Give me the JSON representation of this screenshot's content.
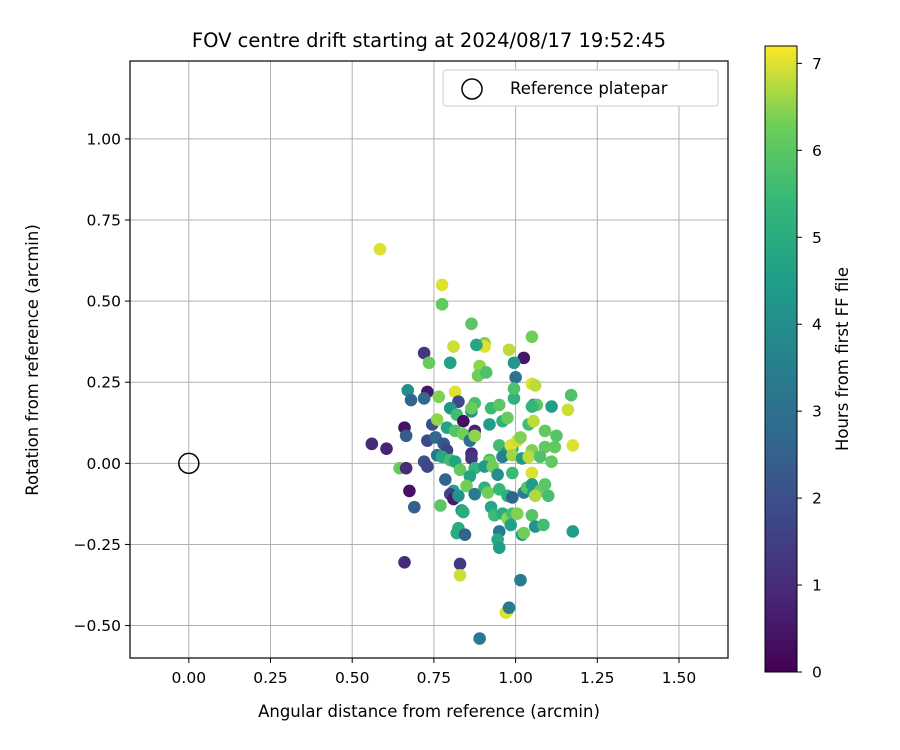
{
  "chart_data": {
    "type": "scatter",
    "title": "FOV centre drift starting at 2024/08/17 19:52:45",
    "xlabel": "Angular distance from reference (arcmin)",
    "ylabel": "Rotation from reference (arcmin)",
    "xlim": [
      -0.18,
      1.65
    ],
    "ylim": [
      -0.6,
      1.24
    ],
    "xticks": [
      "0.00",
      "0.25",
      "0.50",
      "0.75",
      "1.00",
      "1.25",
      "1.50"
    ],
    "xtick_values": [
      0,
      0.25,
      0.5,
      0.75,
      1.0,
      1.25,
      1.5
    ],
    "yticks": [
      "−0.50",
      "−0.25",
      "0.00",
      "0.25",
      "0.50",
      "0.75",
      "1.00"
    ],
    "ytick_values": [
      -0.5,
      -0.25,
      0,
      0.25,
      0.5,
      0.75,
      1.0
    ],
    "grid": true,
    "legend": {
      "placement": "top-right",
      "entries": [
        "Reference platepar"
      ]
    },
    "reference_point": {
      "name": "Reference platepar",
      "x": 0.0,
      "y": 0.0
    },
    "colorbar": {
      "label": "Hours from first FF file",
      "range": [
        0,
        7.2
      ],
      "ticks": [
        "0",
        "1",
        "2",
        "3",
        "4",
        "5",
        "6",
        "7"
      ],
      "tick_values": [
        0,
        1,
        2,
        3,
        4,
        5,
        6,
        7
      ],
      "colormap": "viridis"
    },
    "points": [
      [
        0.585,
        0.66,
        7.0
      ],
      [
        0.775,
        0.55,
        7.0
      ],
      [
        0.775,
        0.49,
        6.1
      ],
      [
        0.865,
        0.43,
        6.0
      ],
      [
        0.905,
        0.37,
        6.4
      ],
      [
        0.905,
        0.36,
        7.0
      ],
      [
        0.98,
        0.35,
        6.8
      ],
      [
        1.05,
        0.39,
        6.3
      ],
      [
        0.88,
        0.365,
        4.8
      ],
      [
        0.81,
        0.36,
        6.9
      ],
      [
        1.025,
        0.325,
        0.5
      ],
      [
        0.72,
        0.34,
        1.3
      ],
      [
        0.735,
        0.31,
        6.2
      ],
      [
        0.8,
        0.31,
        4.6
      ],
      [
        0.89,
        0.3,
        6.5
      ],
      [
        0.885,
        0.27,
        6.3
      ],
      [
        0.91,
        0.28,
        5.8
      ],
      [
        0.995,
        0.31,
        4.3
      ],
      [
        1.0,
        0.265,
        3.0
      ],
      [
        1.05,
        0.245,
        7.0
      ],
      [
        1.06,
        0.24,
        6.8
      ],
      [
        0.73,
        0.22,
        0.5
      ],
      [
        0.67,
        0.225,
        4.0
      ],
      [
        0.68,
        0.195,
        2.6
      ],
      [
        0.72,
        0.2,
        2.8
      ],
      [
        0.765,
        0.205,
        6.4
      ],
      [
        0.815,
        0.22,
        7.0
      ],
      [
        0.825,
        0.19,
        1.8
      ],
      [
        0.8,
        0.17,
        4.3
      ],
      [
        0.82,
        0.15,
        5.6
      ],
      [
        0.84,
        0.13,
        0.3
      ],
      [
        0.865,
        0.16,
        4.2
      ],
      [
        0.875,
        0.185,
        5.7
      ],
      [
        0.865,
        0.17,
        6.2
      ],
      [
        0.925,
        0.17,
        5.5
      ],
      [
        0.95,
        0.18,
        6.0
      ],
      [
        0.995,
        0.2,
        5.2
      ],
      [
        0.995,
        0.23,
        5.8
      ],
      [
        1.055,
        0.18,
        3.6
      ],
      [
        1.065,
        0.18,
        6.0
      ],
      [
        1.05,
        0.175,
        5.3
      ],
      [
        1.11,
        0.175,
        4.5
      ],
      [
        1.16,
        0.165,
        6.9
      ],
      [
        1.17,
        0.21,
        5.8
      ],
      [
        0.745,
        0.12,
        2.0
      ],
      [
        0.76,
        0.135,
        6.5
      ],
      [
        0.79,
        0.11,
        4.7
      ],
      [
        0.815,
        0.1,
        5.9
      ],
      [
        0.84,
        0.09,
        6.3
      ],
      [
        0.875,
        0.1,
        0.8
      ],
      [
        0.92,
        0.12,
        4.5
      ],
      [
        0.96,
        0.13,
        5.2
      ],
      [
        0.975,
        0.14,
        6.2
      ],
      [
        1.04,
        0.12,
        5.6
      ],
      [
        1.055,
        0.13,
        6.8
      ],
      [
        1.09,
        0.1,
        6.1
      ],
      [
        1.125,
        0.085,
        5.9
      ],
      [
        0.66,
        0.11,
        0.4
      ],
      [
        0.665,
        0.085,
        2.4
      ],
      [
        0.73,
        0.07,
        1.8
      ],
      [
        0.755,
        0.08,
        2.7
      ],
      [
        0.78,
        0.06,
        2.2
      ],
      [
        0.79,
        0.04,
        1.6
      ],
      [
        0.86,
        0.07,
        3.0
      ],
      [
        0.875,
        0.085,
        6.5
      ],
      [
        0.95,
        0.055,
        5.6
      ],
      [
        0.975,
        0.035,
        4.2
      ],
      [
        0.99,
        0.045,
        5.0
      ],
      [
        0.985,
        0.055,
        7.0
      ],
      [
        1.005,
        0.07,
        6.9
      ],
      [
        1.015,
        0.08,
        6.4
      ],
      [
        1.05,
        0.04,
        6.4
      ],
      [
        1.09,
        0.05,
        6.1
      ],
      [
        1.12,
        0.05,
        6.1
      ],
      [
        1.175,
        0.055,
        7.0
      ],
      [
        0.56,
        0.06,
        1.0
      ],
      [
        0.605,
        0.045,
        0.8
      ],
      [
        0.76,
        0.025,
        3.2
      ],
      [
        0.775,
        0.02,
        4.9
      ],
      [
        0.8,
        0.01,
        5.6
      ],
      [
        0.815,
        0.005,
        4.7
      ],
      [
        0.865,
        0.03,
        1.0
      ],
      [
        0.865,
        0.015,
        1.3
      ],
      [
        0.92,
        0.01,
        5.4
      ],
      [
        0.92,
        0.005,
        6.3
      ],
      [
        0.96,
        0.02,
        3.5
      ],
      [
        0.99,
        0.025,
        6.6
      ],
      [
        1.02,
        0.015,
        4.4
      ],
      [
        1.04,
        0.02,
        6.8
      ],
      [
        1.075,
        0.02,
        5.8
      ],
      [
        1.11,
        0.005,
        6.1
      ],
      [
        0.72,
        0.005,
        2.0
      ],
      [
        0.73,
        -0.01,
        1.7
      ],
      [
        0.645,
        -0.015,
        6.2
      ],
      [
        0.665,
        -0.015,
        1.0
      ],
      [
        0.83,
        -0.02,
        6.1
      ],
      [
        0.875,
        -0.015,
        5.3
      ],
      [
        0.905,
        -0.01,
        4.4
      ],
      [
        0.93,
        -0.01,
        6.3
      ],
      [
        0.945,
        -0.035,
        4.0
      ],
      [
        0.99,
        -0.03,
        5.5
      ],
      [
        1.05,
        -0.03,
        7.0
      ],
      [
        0.785,
        -0.05,
        2.6
      ],
      [
        0.86,
        -0.04,
        4.7
      ],
      [
        0.675,
        -0.085,
        0.4
      ],
      [
        0.81,
        -0.085,
        4.6
      ],
      [
        0.8,
        -0.095,
        1.6
      ],
      [
        0.81,
        -0.11,
        0.6
      ],
      [
        0.825,
        -0.1,
        4.2
      ],
      [
        0.85,
        -0.07,
        6.3
      ],
      [
        0.875,
        -0.095,
        3.3
      ],
      [
        0.905,
        -0.075,
        5.2
      ],
      [
        0.915,
        -0.09,
        6.3
      ],
      [
        0.95,
        -0.08,
        5.4
      ],
      [
        0.975,
        -0.1,
        5.1
      ],
      [
        0.99,
        -0.105,
        2.6
      ],
      [
        1.025,
        -0.09,
        3.5
      ],
      [
        1.035,
        -0.075,
        5.9
      ],
      [
        1.05,
        -0.065,
        4.5
      ],
      [
        1.055,
        -0.09,
        4.5
      ],
      [
        1.075,
        -0.085,
        6.2
      ],
      [
        1.09,
        -0.065,
        6.0
      ],
      [
        1.1,
        -0.1,
        5.7
      ],
      [
        1.06,
        -0.1,
        6.7
      ],
      [
        0.69,
        -0.135,
        2.5
      ],
      [
        0.77,
        -0.13,
        6.0
      ],
      [
        0.835,
        -0.145,
        4.4
      ],
      [
        0.84,
        -0.15,
        5.0
      ],
      [
        0.925,
        -0.135,
        4.8
      ],
      [
        0.935,
        -0.16,
        5.5
      ],
      [
        0.96,
        -0.155,
        5.0
      ],
      [
        0.975,
        -0.17,
        6.5
      ],
      [
        0.99,
        -0.155,
        5.7
      ],
      [
        1.005,
        -0.155,
        6.4
      ],
      [
        1.05,
        -0.16,
        5.9
      ],
      [
        0.95,
        -0.21,
        3.3
      ],
      [
        0.985,
        -0.19,
        4.6
      ],
      [
        1.06,
        -0.195,
        4.2
      ],
      [
        1.085,
        -0.19,
        5.6
      ],
      [
        1.175,
        -0.21,
        4.5
      ],
      [
        0.825,
        -0.2,
        5.0
      ],
      [
        0.82,
        -0.215,
        5.0
      ],
      [
        0.845,
        -0.22,
        2.6
      ],
      [
        0.945,
        -0.235,
        4.9
      ],
      [
        0.95,
        -0.26,
        4.5
      ],
      [
        1.02,
        -0.22,
        4.2
      ],
      [
        1.025,
        -0.215,
        6.3
      ],
      [
        0.66,
        -0.305,
        1.0
      ],
      [
        0.83,
        -0.31,
        1.4
      ],
      [
        0.83,
        -0.345,
        6.9
      ],
      [
        1.015,
        -0.36,
        3.4
      ],
      [
        0.975,
        -0.455,
        6.7
      ],
      [
        0.97,
        -0.46,
        7.0
      ],
      [
        0.89,
        -0.54,
        3.3
      ],
      [
        0.98,
        -0.445,
        3.3
      ]
    ]
  }
}
